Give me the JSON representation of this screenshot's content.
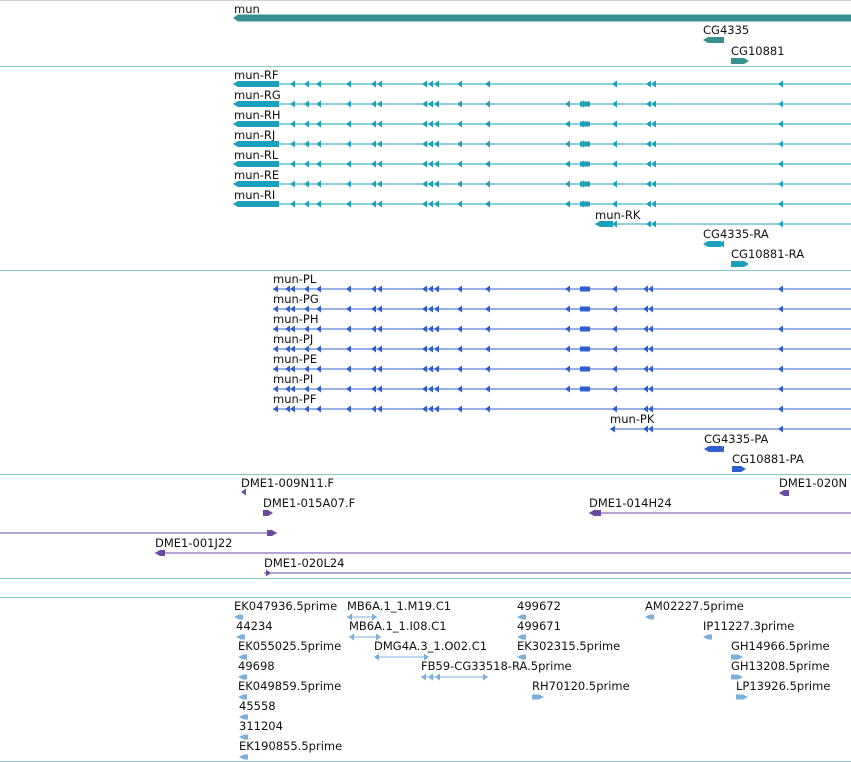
{
  "genome_browser": {
    "colors": {
      "gene": "#3a8f8f",
      "transcript": "#1aa0b8",
      "protein": "#2f5fcf",
      "clone": "#6a4aa0",
      "est": "#7bb0dc",
      "separator": "#8ec5c5"
    },
    "tracks": {
      "gene": {
        "features": [
          {
            "label": "mun"
          },
          {
            "label": "CG4335"
          },
          {
            "label": "CG10881"
          }
        ]
      },
      "transcript": {
        "features": [
          {
            "label": "mun-RF"
          },
          {
            "label": "mun-RG"
          },
          {
            "label": "mun-RH"
          },
          {
            "label": "mun-RJ"
          },
          {
            "label": "mun-RL"
          },
          {
            "label": "mun-RE"
          },
          {
            "label": "mun-RI"
          },
          {
            "label": "mun-RK"
          },
          {
            "label": "CG4335-RA"
          },
          {
            "label": "CG10881-RA"
          }
        ]
      },
      "protein": {
        "features": [
          {
            "label": "mun-PL"
          },
          {
            "label": "mun-PG"
          },
          {
            "label": "mun-PH"
          },
          {
            "label": "mun-PJ"
          },
          {
            "label": "mun-PE"
          },
          {
            "label": "mun-PI"
          },
          {
            "label": "mun-PF"
          },
          {
            "label": "mun-PK"
          },
          {
            "label": "CG4335-PA"
          },
          {
            "label": "CG10881-PA"
          }
        ]
      },
      "clone": {
        "features": [
          {
            "label": "DME1-009N11.F"
          },
          {
            "label": "DME1-020N"
          },
          {
            "label": "DME1-015A07.F"
          },
          {
            "label": "DME1-014H24"
          },
          {
            "label": "DME1-001J22"
          },
          {
            "label": "DME1-020L24"
          }
        ]
      },
      "est": {
        "features": [
          {
            "label": "EK047936.5prime"
          },
          {
            "label": "MB6A.1_1.M19.C1"
          },
          {
            "label": "499672"
          },
          {
            "label": "AM02227.5prime"
          },
          {
            "label": "44234"
          },
          {
            "label": "MB6A.1_1.I08.C1"
          },
          {
            "label": "499671"
          },
          {
            "label": "IP11227.3prime"
          },
          {
            "label": "EK055025.5prime"
          },
          {
            "label": "DMG4A.3_1.O02.C1"
          },
          {
            "label": "EK302315.5prime"
          },
          {
            "label": "GH14966.5prime"
          },
          {
            "label": "49698"
          },
          {
            "label": "FB59-CG33518-RA.5prime"
          },
          {
            "label": "GH13208.5prime"
          },
          {
            "label": "EK049859.5prime"
          },
          {
            "label": "RH70120.5prime"
          },
          {
            "label": "LP13926.5prime"
          },
          {
            "label": "45558"
          },
          {
            "label": "311204"
          },
          {
            "label": "EK190855.5prime"
          }
        ]
      }
    }
  }
}
